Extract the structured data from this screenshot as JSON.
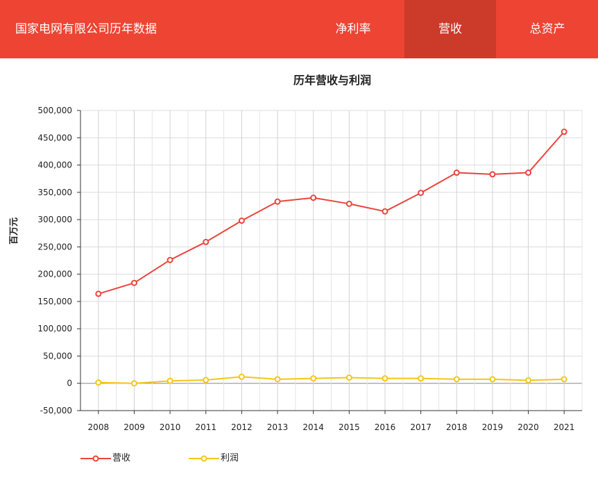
{
  "header": {
    "brand": "国家电网有限公司历年数据",
    "tabs": [
      {
        "label": "净利率",
        "active": false
      },
      {
        "label": "营收",
        "active": true
      },
      {
        "label": "总资产",
        "active": false
      }
    ],
    "bar_color": "#ee4433",
    "active_tab_color": "#cc3a2a"
  },
  "chart_data": {
    "type": "line",
    "title": "历年营收与利润",
    "ylabel": "百万元",
    "xlabel": "",
    "categories": [
      "2008",
      "2009",
      "2010",
      "2011",
      "2012",
      "2013",
      "2014",
      "2015",
      "2016",
      "2017",
      "2018",
      "2019",
      "2020",
      "2021"
    ],
    "ylim": [
      -50000,
      500000
    ],
    "yticks": [
      -50000,
      0,
      50000,
      100000,
      150000,
      200000,
      250000,
      300000,
      350000,
      400000,
      450000,
      500000
    ],
    "ytick_labels": [
      "-50,000",
      "0",
      "50,000",
      "100,000",
      "150,000",
      "200,000",
      "250,000",
      "300,000",
      "350,000",
      "400,000",
      "450,000",
      "500,000"
    ],
    "grid": true,
    "legend_position": "bottom-left",
    "series": [
      {
        "name": "营收",
        "color": "#e8453c",
        "values": [
          164000,
          184000,
          226000,
          259000,
          298000,
          333000,
          340000,
          329000,
          315000,
          349000,
          386000,
          383000,
          386000,
          461000
        ]
      },
      {
        "name": "利润",
        "color": "#f5c518",
        "values": [
          1500,
          0,
          4500,
          6000,
          12000,
          7500,
          9000,
          10500,
          9000,
          9000,
          7500,
          7500,
          5500,
          7500
        ]
      }
    ]
  }
}
